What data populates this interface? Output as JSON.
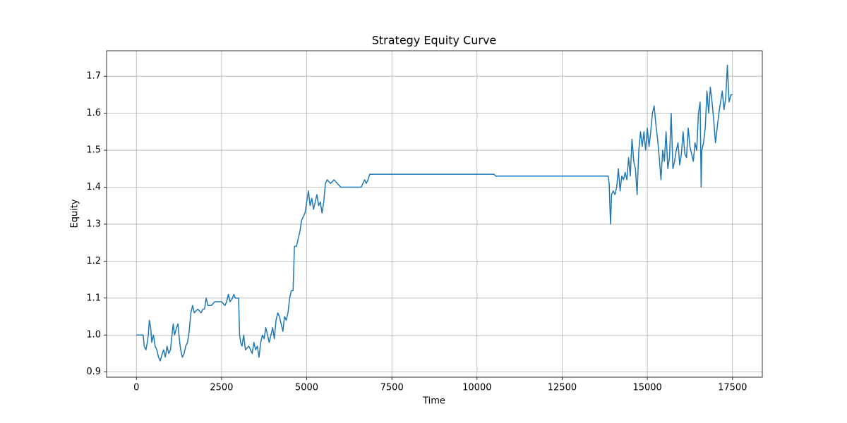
{
  "chart_data": {
    "type": "line",
    "title": "Strategy Equity Curve",
    "x_label": "Time",
    "y_label": "Equity",
    "color": "#1f77b4",
    "grid": true,
    "xlim": [
      -875,
      18375
    ],
    "ylim": [
      0.886,
      1.769
    ],
    "xticks": [
      0,
      2500,
      5000,
      7500,
      10000,
      12500,
      15000,
      17500
    ],
    "yticks": [
      0.9,
      {
        "value": 1.0,
        "label": "1.0"
      },
      1.1,
      1.2,
      1.3,
      1.4,
      1.5,
      1.6,
      1.7
    ],
    "x": [
      0,
      200,
      230,
      280,
      320,
      350,
      380,
      420,
      450,
      500,
      550,
      600,
      650,
      700,
      760,
      800,
      850,
      900,
      950,
      1000,
      1080,
      1120,
      1180,
      1220,
      1260,
      1300,
      1350,
      1400,
      1450,
      1500,
      1550,
      1600,
      1650,
      1700,
      1800,
      1900,
      1950,
      2000,
      2050,
      2100,
      2200,
      2300,
      2500,
      2600,
      2650,
      2700,
      2750,
      2820,
      2860,
      2900,
      3000,
      3030,
      3060,
      3100,
      3150,
      3200,
      3300,
      3400,
      3450,
      3500,
      3550,
      3600,
      3650,
      3700,
      3750,
      3800,
      3850,
      3900,
      3950,
      4000,
      4050,
      4100,
      4150,
      4200,
      4250,
      4300,
      4350,
      4400,
      4450,
      4500,
      4550,
      4600,
      4640,
      4700,
      4750,
      4800,
      4850,
      4900,
      4950,
      5000,
      5050,
      5100,
      5150,
      5200,
      5250,
      5300,
      5350,
      5400,
      5450,
      5500,
      5550,
      5600,
      5700,
      5800,
      5900,
      6000,
      6200,
      6500,
      6600,
      6700,
      6750,
      6800,
      6850,
      10500,
      10550,
      13850,
      13880,
      13900,
      13920,
      13950,
      14000,
      14050,
      14100,
      14150,
      14200,
      14250,
      14300,
      14350,
      14400,
      14450,
      14500,
      14550,
      14600,
      14650,
      14700,
      14750,
      14800,
      14850,
      14900,
      14950,
      15000,
      15050,
      15100,
      15150,
      15200,
      15250,
      15300,
      15350,
      15400,
      15450,
      15500,
      15550,
      15600,
      15650,
      15700,
      15750,
      15800,
      15850,
      15900,
      15950,
      16000,
      16050,
      16100,
      16150,
      16200,
      16250,
      16300,
      16350,
      16400,
      16450,
      16500,
      16550,
      16580,
      16600,
      16650,
      16700,
      16750,
      16800,
      16850,
      16900,
      16950,
      17000,
      17050,
      17100,
      17150,
      17200,
      17250,
      17300,
      17350,
      17400,
      17450,
      17500
    ],
    "values": [
      1.0,
      1.0,
      0.97,
      0.96,
      0.98,
      1.0,
      1.04,
      1.02,
      0.98,
      1.0,
      0.97,
      0.96,
      0.94,
      0.93,
      0.95,
      0.96,
      0.94,
      0.97,
      0.95,
      0.96,
      1.03,
      1.0,
      1.02,
      1.03,
      0.99,
      0.96,
      0.94,
      0.95,
      0.97,
      0.98,
      1.01,
      1.06,
      1.08,
      1.06,
      1.07,
      1.06,
      1.07,
      1.07,
      1.1,
      1.08,
      1.08,
      1.09,
      1.09,
      1.08,
      1.09,
      1.11,
      1.09,
      1.1,
      1.11,
      1.1,
      1.1,
      1.0,
      0.98,
      0.97,
      1.0,
      0.96,
      0.97,
      0.95,
      0.98,
      0.96,
      0.97,
      0.94,
      0.98,
      1.0,
      0.99,
      1.02,
      1.0,
      0.98,
      1.0,
      1.02,
      0.99,
      1.04,
      1.06,
      1.05,
      1.03,
      1.01,
      1.05,
      1.04,
      1.06,
      1.1,
      1.12,
      1.12,
      1.24,
      1.24,
      1.26,
      1.28,
      1.31,
      1.32,
      1.33,
      1.36,
      1.39,
      1.35,
      1.37,
      1.34,
      1.36,
      1.38,
      1.35,
      1.36,
      1.33,
      1.36,
      1.41,
      1.42,
      1.41,
      1.42,
      1.41,
      1.4,
      1.4,
      1.4,
      1.4,
      1.42,
      1.41,
      1.42,
      1.435,
      1.435,
      1.43,
      1.43,
      1.41,
      1.35,
      1.3,
      1.38,
      1.39,
      1.38,
      1.4,
      1.45,
      1.39,
      1.43,
      1.42,
      1.44,
      1.42,
      1.48,
      1.43,
      1.53,
      1.47,
      1.45,
      1.38,
      1.5,
      1.55,
      1.51,
      1.55,
      1.5,
      1.56,
      1.51,
      1.55,
      1.6,
      1.62,
      1.57,
      1.53,
      1.48,
      1.42,
      1.5,
      1.47,
      1.55,
      1.45,
      1.48,
      1.6,
      1.45,
      1.47,
      1.5,
      1.52,
      1.46,
      1.49,
      1.55,
      1.49,
      1.48,
      1.56,
      1.51,
      1.49,
      1.47,
      1.52,
      1.5,
      1.6,
      1.63,
      1.4,
      1.5,
      1.52,
      1.56,
      1.66,
      1.6,
      1.67,
      1.63,
      1.58,
      1.52,
      1.56,
      1.6,
      1.63,
      1.66,
      1.61,
      1.64,
      1.73,
      1.63,
      1.65,
      1.65
    ]
  }
}
